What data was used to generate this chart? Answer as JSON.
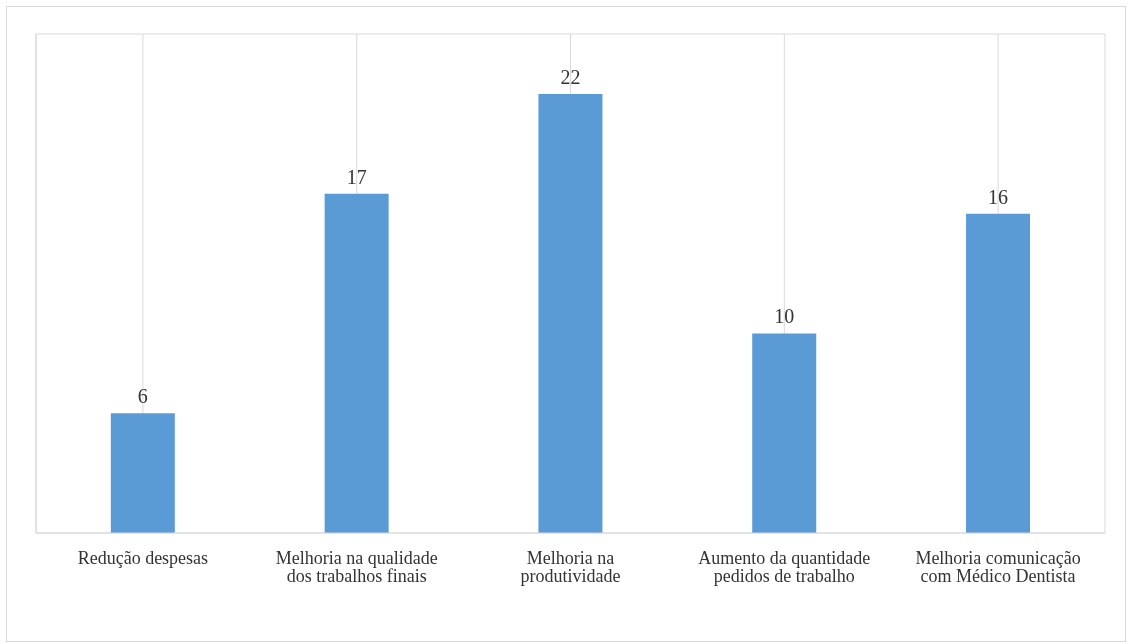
{
  "chart_data": {
    "type": "bar",
    "categories": [
      "Redução despesas",
      "Melhoria na qualidade dos trabalhos finais",
      "Melhoria na produtividade",
      "Aumento da quantidade pedidos de trabalho",
      "Melhoria comunicação com Médico Dentista"
    ],
    "values": [
      6,
      17,
      22,
      10,
      16
    ],
    "color": "#5b9bd5",
    "data_labels": true,
    "ylim": [
      0,
      25
    ],
    "grid": true,
    "tick_labels": "x"
  }
}
